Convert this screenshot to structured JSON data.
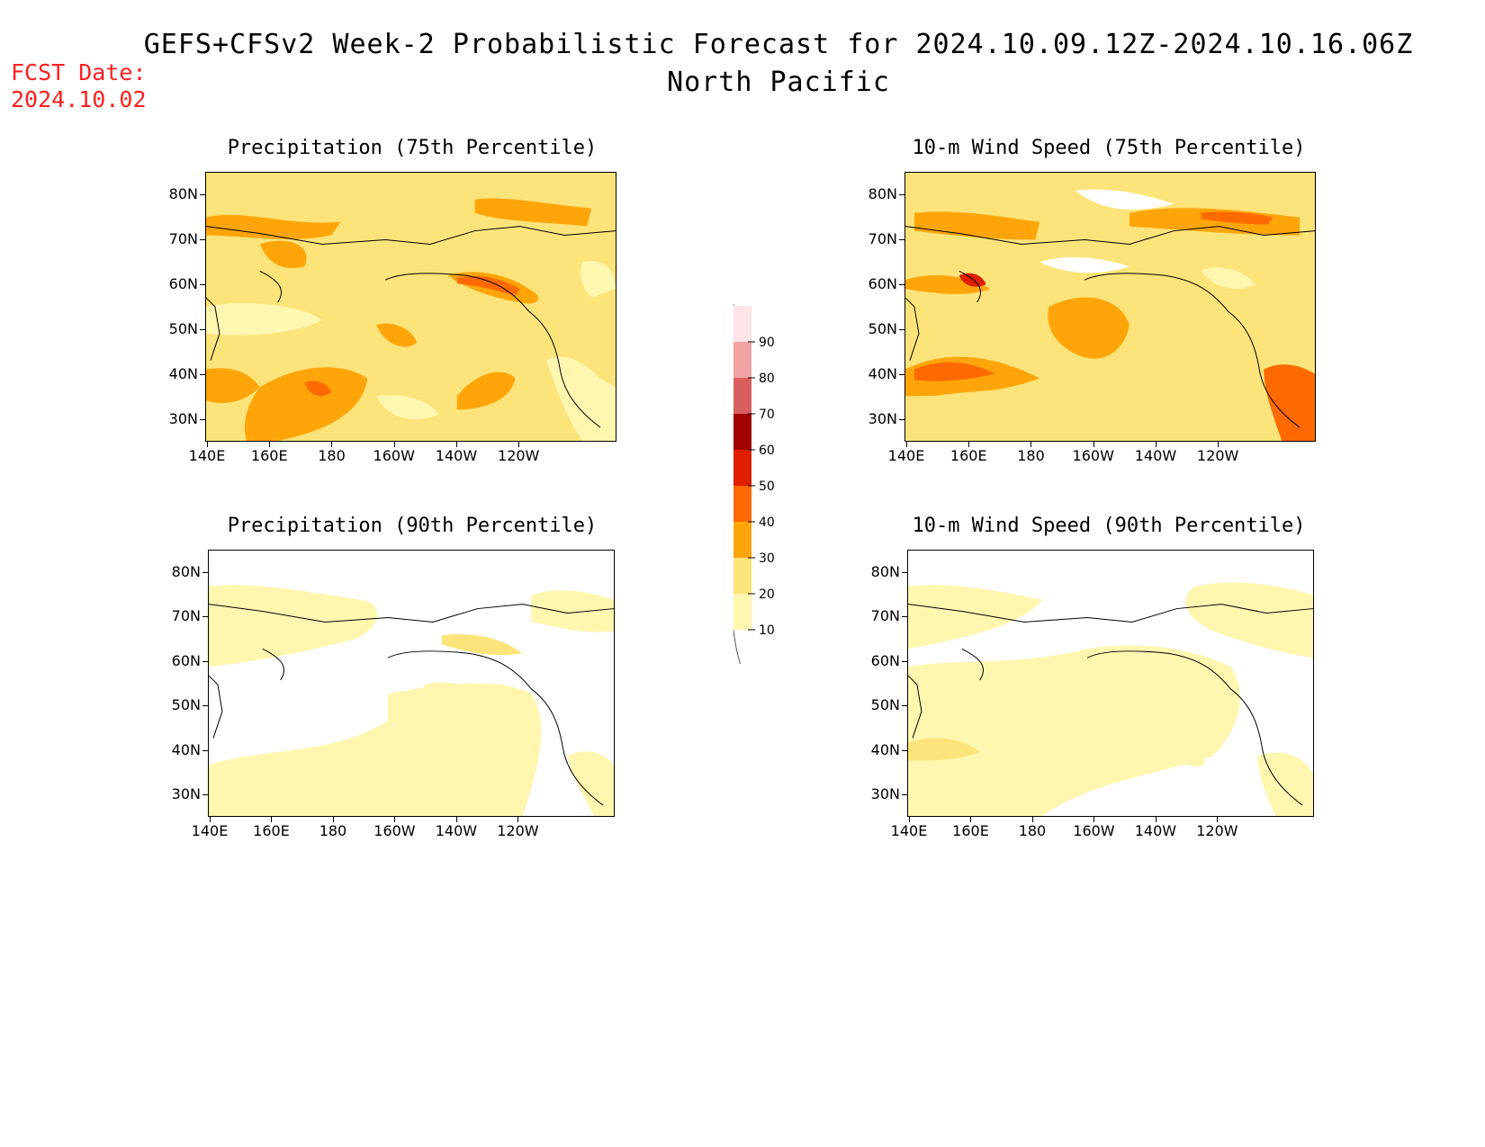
{
  "header": {
    "title": "GEFS+CFSv2 Week-2 Probabilistic Forecast for 2024.10.09.12Z-2024.10.16.06Z",
    "region": "North Pacific"
  },
  "fcst_date": {
    "label": "FCST Date:",
    "value": "2024.10.02"
  },
  "panels": [
    {
      "title": "Precipitation (75th Percentile)"
    },
    {
      "title": "10-m Wind Speed (75th Percentile)"
    },
    {
      "title": "Precipitation (90th Percentile)"
    },
    {
      "title": "10-m Wind Speed (90th Percentile)"
    }
  ],
  "axes": {
    "lat_labels": [
      "80N",
      "70N",
      "60N",
      "50N",
      "40N",
      "30N"
    ],
    "lon_labels": [
      "140E",
      "160E",
      "180",
      "160W",
      "140W",
      "120W"
    ]
  },
  "colorbar": {
    "levels": [
      "10",
      "20",
      "30",
      "40",
      "50",
      "60",
      "70",
      "80",
      "90"
    ],
    "colors": [
      "#fff7b0",
      "#fde47a",
      "#ffa50a",
      "#ff6a00",
      "#e01e00",
      "#a30000",
      "#d95f5f",
      "#f3a3a3",
      "#ffe4e8"
    ]
  },
  "colors": {
    "title_red": "#ff2020",
    "shade_light": "#fff7b0",
    "shade_mid": "#fde47a",
    "shade_orange": "#ffa50a",
    "shade_dark_orange": "#ff6a00",
    "shade_red": "#e01e00"
  }
}
